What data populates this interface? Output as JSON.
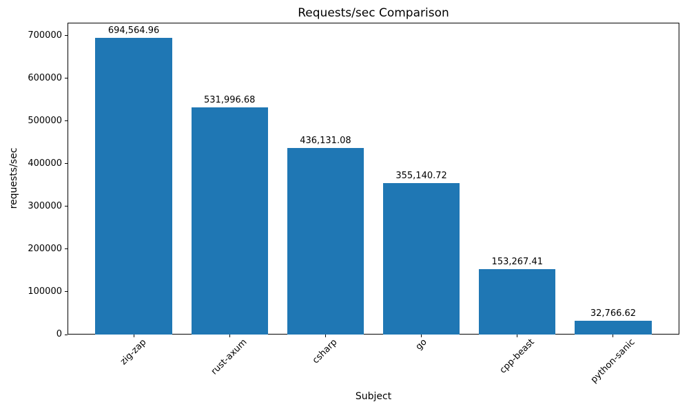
{
  "chart_data": {
    "type": "bar",
    "title": "Requests/sec Comparison",
    "xlabel": "Subject",
    "ylabel": "requests/sec",
    "categories": [
      "zig-zap",
      "rust-axum",
      "csharp",
      "go",
      "cpp-beast",
      "python-sanic"
    ],
    "values": [
      694564.96,
      531996.68,
      436131.08,
      355140.72,
      153267.41,
      32766.62
    ],
    "value_labels": [
      "694,564.96",
      "531,996.68",
      "436,131.08",
      "355,140.72",
      "153,267.41",
      "32,766.62"
    ],
    "yticks": [
      0,
      100000,
      200000,
      300000,
      400000,
      500000,
      600000,
      700000
    ],
    "ytick_labels": [
      "0",
      "100000",
      "200000",
      "300000",
      "400000",
      "500000",
      "600000",
      "700000"
    ],
    "ylim": [
      0,
      730000
    ],
    "bar_color": "#1f77b4",
    "text_color": "#000000",
    "bar_width_frac": 0.8,
    "grid": false,
    "legend": null,
    "x_tick_rotation_deg": 45
  }
}
